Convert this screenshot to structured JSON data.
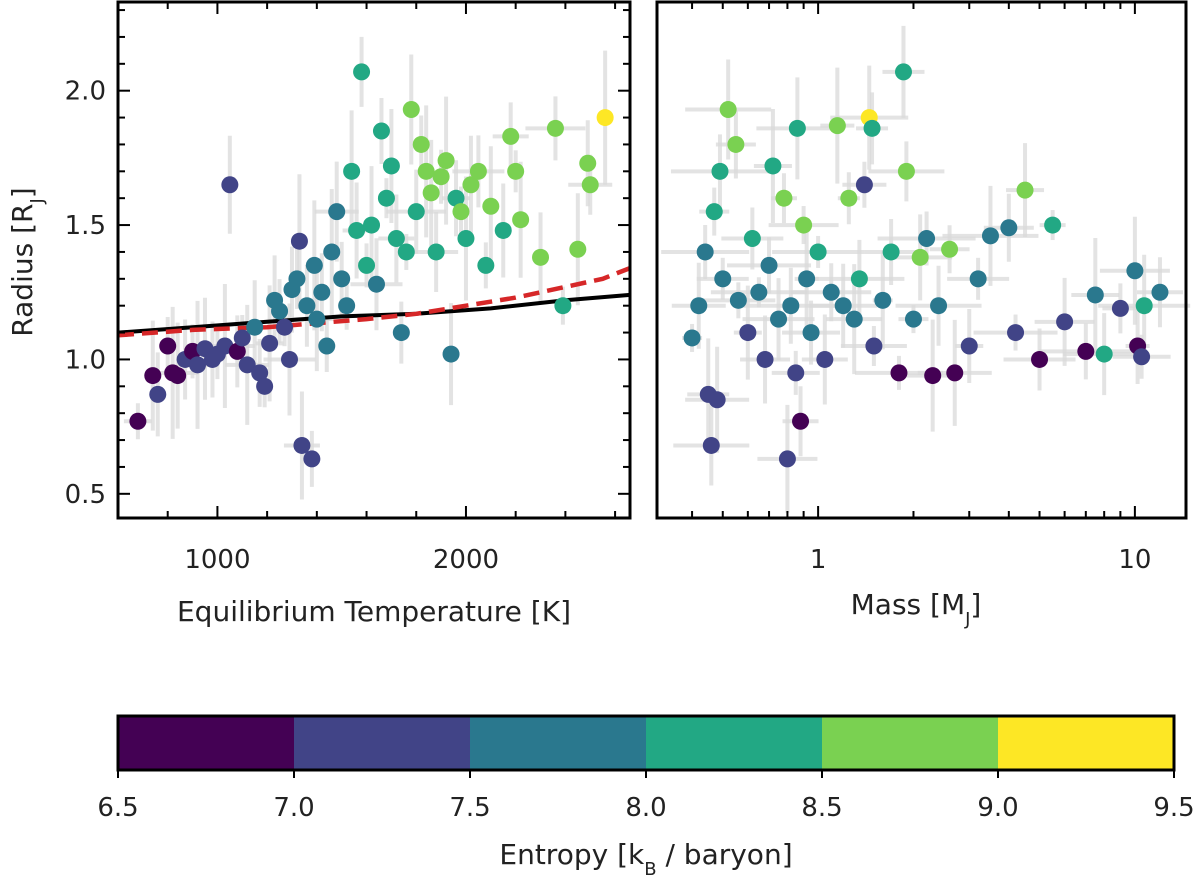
{
  "chart_data": [
    {
      "type": "scatter",
      "panel": "left",
      "xlabel": "Equilibrium Temperature [K]",
      "ylabel": "Radius [R",
      "ylabel_sub": "J",
      "ylabel_close": "]",
      "xlim": [
        600,
        2660
      ],
      "ylim": [
        0.41,
        2.33
      ],
      "xticks": [
        "1000",
        "2000"
      ],
      "yticks": [
        "0.5",
        "1.0",
        "1.5",
        "2.0"
      ],
      "lines": [
        {
          "style": "solid",
          "color": "#000000",
          "x": [
            600,
            900,
            1200,
            1500,
            1800,
            2100,
            2400,
            2660
          ],
          "y": [
            1.1,
            1.12,
            1.14,
            1.16,
            1.17,
            1.19,
            1.22,
            1.24
          ]
        },
        {
          "style": "dashed",
          "color": "#d62728",
          "x": [
            600,
            900,
            1200,
            1400,
            1600,
            1800,
            2000,
            2200,
            2400,
            2550,
            2660
          ],
          "y": [
            1.09,
            1.11,
            1.12,
            1.135,
            1.15,
            1.17,
            1.2,
            1.23,
            1.27,
            1.3,
            1.34
          ]
        }
      ],
      "points": [
        {
          "x": 680,
          "y": 0.77,
          "s": 6.8
        },
        {
          "x": 740,
          "y": 0.94,
          "s": 6.9
        },
        {
          "x": 760,
          "y": 0.87,
          "s": 7.2
        },
        {
          "x": 800,
          "y": 1.05,
          "s": 6.9
        },
        {
          "x": 820,
          "y": 0.95,
          "s": 6.8
        },
        {
          "x": 840,
          "y": 0.94,
          "s": 6.8
        },
        {
          "x": 870,
          "y": 1.0,
          "s": 7.2
        },
        {
          "x": 900,
          "y": 1.03,
          "s": 6.9
        },
        {
          "x": 920,
          "y": 0.98,
          "s": 7.2
        },
        {
          "x": 950,
          "y": 1.04,
          "s": 7.2
        },
        {
          "x": 980,
          "y": 1.0,
          "s": 7.2
        },
        {
          "x": 1000,
          "y": 1.02,
          "s": 7.3
        },
        {
          "x": 1030,
          "y": 1.05,
          "s": 7.2
        },
        {
          "x": 1050,
          "y": 1.65,
          "s": 7.3
        },
        {
          "x": 1080,
          "y": 1.03,
          "s": 6.8
        },
        {
          "x": 1100,
          "y": 1.08,
          "s": 7.2
        },
        {
          "x": 1120,
          "y": 0.98,
          "s": 7.2
        },
        {
          "x": 1150,
          "y": 1.12,
          "s": 7.7
        },
        {
          "x": 1170,
          "y": 0.95,
          "s": 7.3
        },
        {
          "x": 1190,
          "y": 0.9,
          "s": 7.2
        },
        {
          "x": 1210,
          "y": 1.06,
          "s": 7.3
        },
        {
          "x": 1230,
          "y": 1.22,
          "s": 7.7
        },
        {
          "x": 1250,
          "y": 1.18,
          "s": 7.7
        },
        {
          "x": 1270,
          "y": 1.12,
          "s": 7.3
        },
        {
          "x": 1290,
          "y": 1.0,
          "s": 7.2
        },
        {
          "x": 1300,
          "y": 1.26,
          "s": 7.8
        },
        {
          "x": 1320,
          "y": 1.3,
          "s": 7.8
        },
        {
          "x": 1330,
          "y": 1.44,
          "s": 7.3
        },
        {
          "x": 1340,
          "y": 0.68,
          "s": 7.2
        },
        {
          "x": 1360,
          "y": 1.2,
          "s": 7.7
        },
        {
          "x": 1380,
          "y": 0.63,
          "s": 7.2
        },
        {
          "x": 1390,
          "y": 1.35,
          "s": 7.7
        },
        {
          "x": 1400,
          "y": 1.15,
          "s": 7.8
        },
        {
          "x": 1420,
          "y": 1.25,
          "s": 7.8
        },
        {
          "x": 1440,
          "y": 1.05,
          "s": 7.7
        },
        {
          "x": 1460,
          "y": 1.4,
          "s": 7.7
        },
        {
          "x": 1480,
          "y": 1.55,
          "s": 7.7
        },
        {
          "x": 1500,
          "y": 1.3,
          "s": 7.9
        },
        {
          "x": 1520,
          "y": 1.2,
          "s": 7.7
        },
        {
          "x": 1540,
          "y": 1.7,
          "s": 8.3
        },
        {
          "x": 1560,
          "y": 1.48,
          "s": 8.2
        },
        {
          "x": 1580,
          "y": 2.07,
          "s": 8.1
        },
        {
          "x": 1600,
          "y": 1.35,
          "s": 8.1
        },
        {
          "x": 1620,
          "y": 1.5,
          "s": 8.3
        },
        {
          "x": 1640,
          "y": 1.28,
          "s": 7.9
        },
        {
          "x": 1660,
          "y": 1.85,
          "s": 8.2
        },
        {
          "x": 1680,
          "y": 1.6,
          "s": 8.3
        },
        {
          "x": 1700,
          "y": 1.72,
          "s": 8.2
        },
        {
          "x": 1720,
          "y": 1.45,
          "s": 8.1
        },
        {
          "x": 1740,
          "y": 1.1,
          "s": 7.7
        },
        {
          "x": 1760,
          "y": 1.4,
          "s": 8.3
        },
        {
          "x": 1780,
          "y": 1.93,
          "s": 8.7
        },
        {
          "x": 1800,
          "y": 1.55,
          "s": 8.2
        },
        {
          "x": 1820,
          "y": 1.8,
          "s": 8.7
        },
        {
          "x": 1840,
          "y": 1.7,
          "s": 8.6
        },
        {
          "x": 1860,
          "y": 1.62,
          "s": 8.7
        },
        {
          "x": 1880,
          "y": 1.4,
          "s": 8.2
        },
        {
          "x": 1900,
          "y": 1.68,
          "s": 8.6
        },
        {
          "x": 1920,
          "y": 1.74,
          "s": 8.7
        },
        {
          "x": 1940,
          "y": 1.02,
          "s": 7.9
        },
        {
          "x": 1960,
          "y": 1.6,
          "s": 8.2
        },
        {
          "x": 1980,
          "y": 1.55,
          "s": 8.6
        },
        {
          "x": 2000,
          "y": 1.45,
          "s": 8.3
        },
        {
          "x": 2020,
          "y": 1.65,
          "s": 8.7
        },
        {
          "x": 2050,
          "y": 1.7,
          "s": 8.7
        },
        {
          "x": 2080,
          "y": 1.35,
          "s": 8.3
        },
        {
          "x": 2100,
          "y": 1.57,
          "s": 8.7
        },
        {
          "x": 2150,
          "y": 1.48,
          "s": 8.2
        },
        {
          "x": 2180,
          "y": 1.83,
          "s": 8.7
        },
        {
          "x": 2200,
          "y": 1.7,
          "s": 8.7
        },
        {
          "x": 2220,
          "y": 1.52,
          "s": 8.6
        },
        {
          "x": 2300,
          "y": 1.38,
          "s": 8.7
        },
        {
          "x": 2360,
          "y": 1.86,
          "s": 8.7
        },
        {
          "x": 2390,
          "y": 1.2,
          "s": 8.2
        },
        {
          "x": 2450,
          "y": 1.41,
          "s": 8.6
        },
        {
          "x": 2490,
          "y": 1.73,
          "s": 8.7
        },
        {
          "x": 2500,
          "y": 1.65,
          "s": 8.7
        },
        {
          "x": 2560,
          "y": 1.9,
          "s": 9.2
        }
      ]
    },
    {
      "type": "scatter",
      "panel": "right",
      "xlabel": "Mass [M",
      "xlabel_sub": "J",
      "xlabel_close": "]",
      "xscale": "log",
      "xlim": [
        0.31,
        14.5
      ],
      "ylim": [
        0.41,
        2.33
      ],
      "xticks": [
        "1",
        "10"
      ],
      "points": [
        {
          "x": 0.4,
          "y": 1.08,
          "s": 7.7
        },
        {
          "x": 0.42,
          "y": 1.2,
          "s": 7.7
        },
        {
          "x": 0.44,
          "y": 1.4,
          "s": 7.8
        },
        {
          "x": 0.45,
          "y": 0.87,
          "s": 7.2
        },
        {
          "x": 0.46,
          "y": 0.68,
          "s": 7.2
        },
        {
          "x": 0.47,
          "y": 1.55,
          "s": 8.1
        },
        {
          "x": 0.48,
          "y": 0.85,
          "s": 7.2
        },
        {
          "x": 0.49,
          "y": 1.7,
          "s": 8.2
        },
        {
          "x": 0.5,
          "y": 1.3,
          "s": 7.8
        },
        {
          "x": 0.52,
          "y": 1.93,
          "s": 8.7
        },
        {
          "x": 0.55,
          "y": 1.8,
          "s": 8.7
        },
        {
          "x": 0.56,
          "y": 1.22,
          "s": 7.7
        },
        {
          "x": 0.6,
          "y": 1.1,
          "s": 7.3
        },
        {
          "x": 0.62,
          "y": 1.45,
          "s": 8.1
        },
        {
          "x": 0.65,
          "y": 1.25,
          "s": 7.9
        },
        {
          "x": 0.68,
          "y": 1.0,
          "s": 7.2
        },
        {
          "x": 0.7,
          "y": 1.35,
          "s": 7.8
        },
        {
          "x": 0.72,
          "y": 1.72,
          "s": 8.2
        },
        {
          "x": 0.75,
          "y": 1.15,
          "s": 7.7
        },
        {
          "x": 0.78,
          "y": 1.6,
          "s": 8.7
        },
        {
          "x": 0.8,
          "y": 0.63,
          "s": 7.2
        },
        {
          "x": 0.82,
          "y": 1.2,
          "s": 7.8
        },
        {
          "x": 0.85,
          "y": 0.95,
          "s": 7.2
        },
        {
          "x": 0.86,
          "y": 1.86,
          "s": 8.2
        },
        {
          "x": 0.88,
          "y": 0.77,
          "s": 6.8
        },
        {
          "x": 0.9,
          "y": 1.5,
          "s": 8.6
        },
        {
          "x": 0.92,
          "y": 1.3,
          "s": 7.7
        },
        {
          "x": 0.95,
          "y": 1.1,
          "s": 7.7
        },
        {
          "x": 1.0,
          "y": 1.4,
          "s": 8.1
        },
        {
          "x": 1.05,
          "y": 1.0,
          "s": 7.2
        },
        {
          "x": 1.1,
          "y": 1.25,
          "s": 7.8
        },
        {
          "x": 1.15,
          "y": 1.87,
          "s": 8.7
        },
        {
          "x": 1.2,
          "y": 1.2,
          "s": 7.7
        },
        {
          "x": 1.25,
          "y": 1.6,
          "s": 8.7
        },
        {
          "x": 1.3,
          "y": 1.15,
          "s": 7.8
        },
        {
          "x": 1.35,
          "y": 1.3,
          "s": 8.2
        },
        {
          "x": 1.4,
          "y": 1.65,
          "s": 7.3
        },
        {
          "x": 1.45,
          "y": 1.9,
          "s": 9.2
        },
        {
          "x": 1.48,
          "y": 1.86,
          "s": 8.2
        },
        {
          "x": 1.5,
          "y": 1.05,
          "s": 7.3
        },
        {
          "x": 1.6,
          "y": 1.22,
          "s": 7.7
        },
        {
          "x": 1.7,
          "y": 1.4,
          "s": 8.2
        },
        {
          "x": 1.8,
          "y": 0.95,
          "s": 6.8
        },
        {
          "x": 1.86,
          "y": 2.07,
          "s": 8.1
        },
        {
          "x": 1.9,
          "y": 1.7,
          "s": 8.7
        },
        {
          "x": 2.0,
          "y": 1.15,
          "s": 7.7
        },
        {
          "x": 2.1,
          "y": 1.38,
          "s": 8.7
        },
        {
          "x": 2.2,
          "y": 1.45,
          "s": 7.8
        },
        {
          "x": 2.3,
          "y": 0.94,
          "s": 6.8
        },
        {
          "x": 2.4,
          "y": 1.2,
          "s": 7.7
        },
        {
          "x": 2.6,
          "y": 1.41,
          "s": 8.6
        },
        {
          "x": 2.7,
          "y": 0.95,
          "s": 6.8
        },
        {
          "x": 3.0,
          "y": 1.05,
          "s": 7.3
        },
        {
          "x": 3.2,
          "y": 1.3,
          "s": 7.8
        },
        {
          "x": 3.5,
          "y": 1.46,
          "s": 7.7
        },
        {
          "x": 4.0,
          "y": 1.49,
          "s": 7.7
        },
        {
          "x": 4.2,
          "y": 1.1,
          "s": 7.3
        },
        {
          "x": 4.5,
          "y": 1.63,
          "s": 8.6
        },
        {
          "x": 5.0,
          "y": 1.0,
          "s": 6.8
        },
        {
          "x": 5.5,
          "y": 1.5,
          "s": 8.1
        },
        {
          "x": 6.0,
          "y": 1.14,
          "s": 7.3
        },
        {
          "x": 7.0,
          "y": 1.03,
          "s": 6.8
        },
        {
          "x": 7.5,
          "y": 1.24,
          "s": 7.7
        },
        {
          "x": 8.0,
          "y": 1.02,
          "s": 8.1
        },
        {
          "x": 9.0,
          "y": 1.19,
          "s": 7.3
        },
        {
          "x": 10.0,
          "y": 1.33,
          "s": 7.7
        },
        {
          "x": 10.2,
          "y": 1.05,
          "s": 6.8
        },
        {
          "x": 10.5,
          "y": 1.01,
          "s": 7.3
        },
        {
          "x": 10.7,
          "y": 1.2,
          "s": 8.2
        },
        {
          "x": 12.0,
          "y": 1.25,
          "s": 7.7
        }
      ]
    }
  ],
  "colorbar": {
    "label": "Entropy [k",
    "label_sub": "B",
    "label_close": " / baryon]",
    "range": [
      6.5,
      9.5
    ],
    "ticks": [
      "6.5",
      "7.0",
      "7.5",
      "8.0",
      "8.5",
      "9.0",
      "9.5"
    ],
    "colors": [
      "#440154",
      "#414487",
      "#2a788e",
      "#22a884",
      "#7ad151",
      "#fde725"
    ]
  },
  "errorbar_color": "#d9d9d9"
}
